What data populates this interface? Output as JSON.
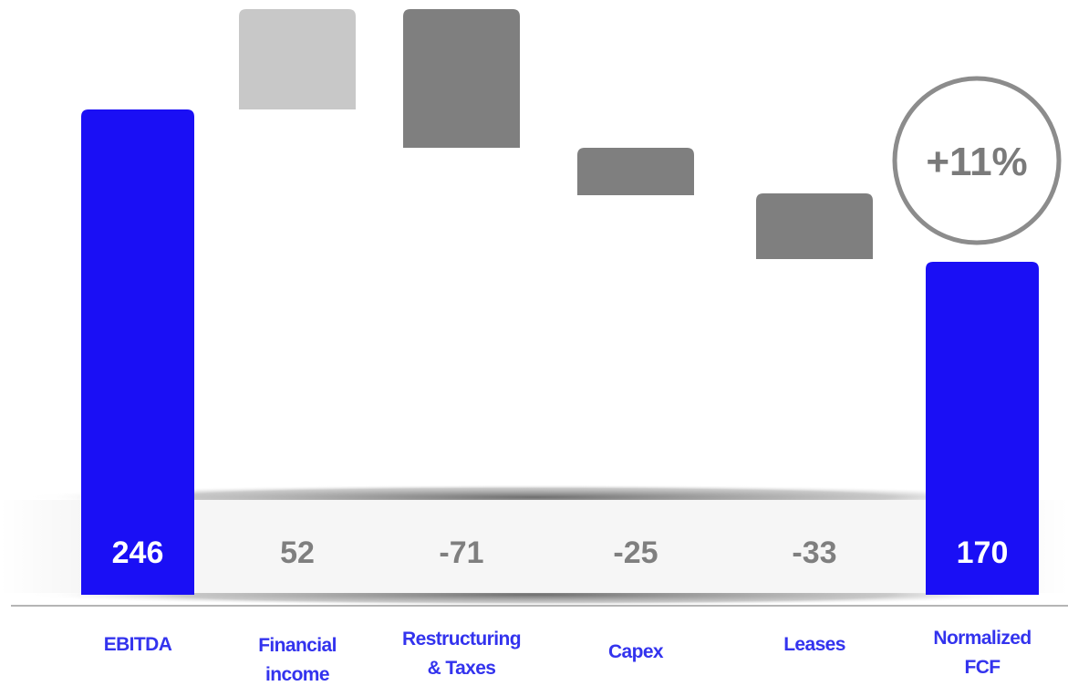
{
  "chart_data": {
    "type": "waterfall",
    "categories": [
      "EBITDA",
      "Financial income",
      "Restructuring & Taxes",
      "Capex",
      "Leases",
      "Normalized FCF"
    ],
    "category_lines": [
      [
        "EBITDA"
      ],
      [
        "Financial",
        "income"
      ],
      [
        "Restructuring",
        "& Taxes"
      ],
      [
        "Capex"
      ],
      [
        "Leases"
      ],
      [
        "Normalized",
        "FCF"
      ]
    ],
    "values": [
      246,
      52,
      -71,
      -25,
      -33,
      170
    ],
    "value_labels": [
      "246",
      "52",
      "-71",
      "-25",
      "-33",
      "170"
    ],
    "bar_kinds": [
      "total",
      "increase",
      "decrease",
      "decrease",
      "decrease",
      "total"
    ],
    "ylim": [
      0,
      300
    ],
    "grid": false,
    "legend": "none",
    "badge": "+11%",
    "colors": {
      "total": "#1a0ff5",
      "increase": "#c8c8c8",
      "decrease": "#7f7f7f",
      "category_text": "#3333ee",
      "value_text": "#7f7f7f",
      "total_value_text": "#ffffff",
      "badge_border": "#8c8c8c"
    }
  }
}
